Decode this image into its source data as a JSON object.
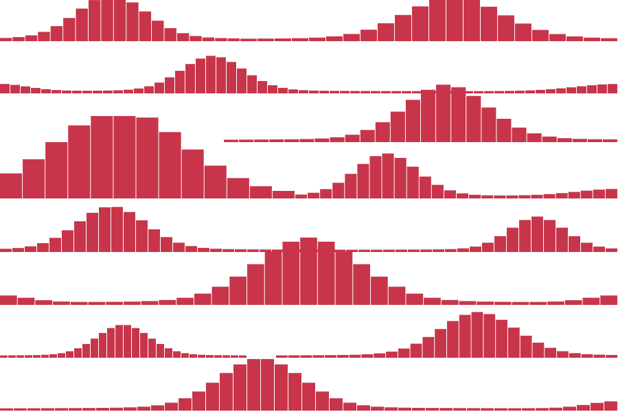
{
  "pattern": {
    "description_visible_text": "",
    "bar_color": "#c8354a",
    "background_color": "#ffffff",
    "gap_color": "#ffffff",
    "rows": [
      {
        "baseline": 60,
        "segments": [
          {
            "start": 0,
            "width": 350,
            "peaks": [
              {
                "center": 163,
                "height": 60,
                "spread": 50
              }
            ],
            "bar_width": 18
          },
          {
            "start": 350,
            "width": 550,
            "peaks": [
              {
                "center": 662,
                "height": 57,
                "spread": 70
              }
            ],
            "bar_width": 25
          }
        ]
      },
      {
        "baseline": 136,
        "segments": [
          {
            "start": 0,
            "width": 900,
            "peaks": [
              {
                "center": 310,
                "height": 48,
                "spread": 45
              },
              {
                "center": 900,
                "height": 10,
                "spread": 60
              },
              {
                "center": 0,
                "height": 10,
                "spread": 40
              }
            ],
            "bar_width": 15
          }
        ]
      },
      {
        "baseline": 207,
        "segments": [
          {
            "start": 326,
            "width": 574,
            "peaks": [
              {
                "center": 650,
                "height": 75,
                "spread": 60
              }
            ],
            "bar_width": 22
          }
        ]
      },
      {
        "baseline": 289,
        "segments": [
          {
            "start": 0,
            "width": 430,
            "peaks": [
              {
                "center": 175,
                "height": 117,
                "spread": 95
              }
            ],
            "bar_width": 34
          },
          {
            "start": 430,
            "width": 470,
            "peaks": [
              {
                "center": 563,
                "height": 58,
                "spread": 45
              },
              {
                "center": 900,
                "height": 10,
                "spread": 60
              }
            ],
            "bar_width": 18
          }
        ]
      },
      {
        "baseline": 367,
        "segments": [
          {
            "start": 0,
            "width": 900,
            "peaks": [
              {
                "center": 163,
                "height": 59,
                "spread": 50
              },
              {
                "center": 783,
                "height": 45,
                "spread": 40
              }
            ],
            "bar_width": 18
          }
        ]
      },
      {
        "baseline": 444,
        "segments": [
          {
            "start": 0,
            "width": 900,
            "peaks": [
              {
                "center": 450,
                "height": 88,
                "spread": 75
              },
              {
                "center": 0,
                "height": 10,
                "spread": 40
              },
              {
                "center": 900,
                "height": 10,
                "spread": 40
              }
            ],
            "bar_width": 26
          }
        ]
      },
      {
        "baseline": 521,
        "segments": [
          {
            "start": 0,
            "width": 360,
            "peaks": [
              {
                "center": 180,
                "height": 42,
                "spread": 38
              }
            ],
            "bar_width": 12
          },
          {
            "start": 402,
            "width": 498,
            "peaks": [
              {
                "center": 697,
                "height": 59,
                "spread": 55
              }
            ],
            "bar_width": 18
          }
        ]
      },
      {
        "baseline": 598,
        "segments": [
          {
            "start": 0,
            "width": 900,
            "peaks": [
              {
                "center": 380,
                "height": 68,
                "spread": 60
              },
              {
                "center": 900,
                "height": 10,
                "spread": 40
              }
            ],
            "bar_width": 20
          }
        ]
      }
    ]
  }
}
